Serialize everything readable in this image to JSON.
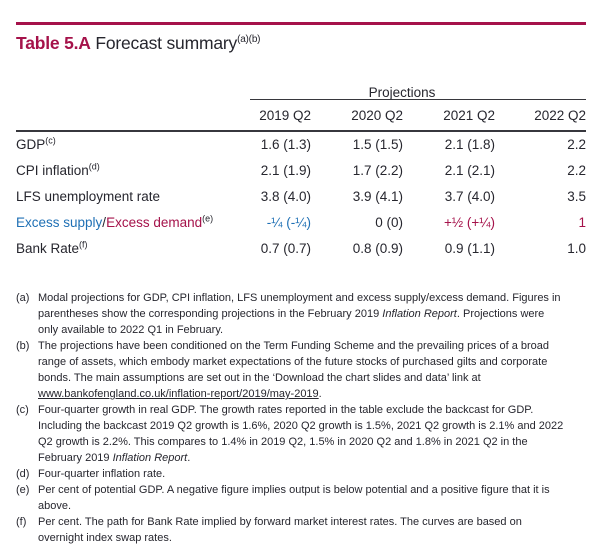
{
  "colors": {
    "crimson": "#A5124A",
    "blue": "#1F70B5",
    "text": "#26262E",
    "line": "#37373D"
  },
  "header": {
    "table_number": "Table 5.A",
    "title": " Forecast summary",
    "title_superscript": "(a)(b)"
  },
  "table": {
    "group_header": "Projections",
    "columns": [
      "2019 Q2",
      "2020 Q2",
      "2021 Q2",
      "2022 Q2"
    ],
    "rows": [
      {
        "label": [
          {
            "t": "GDP"
          },
          {
            "t": "(c)",
            "sup": true
          }
        ],
        "values": [
          {
            "t": "1.6 (1.3)"
          },
          {
            "t": "1.5 (1.5)"
          },
          {
            "t": "2.1 (1.8)"
          },
          {
            "t": "2.2"
          }
        ]
      },
      {
        "label": [
          {
            "t": "CPI inflation"
          },
          {
            "t": "(d)",
            "sup": true
          }
        ],
        "values": [
          {
            "t": "2.1 (1.9)"
          },
          {
            "t": "1.7 (2.2)"
          },
          {
            "t": "2.1 (2.1)"
          },
          {
            "t": "2.2"
          }
        ]
      },
      {
        "label": [
          {
            "t": "LFS unemployment rate"
          }
        ],
        "values": [
          {
            "t": "3.8 (4.0)"
          },
          {
            "t": "3.9 (4.1)"
          },
          {
            "t": "3.7 (4.0)"
          },
          {
            "t": "3.5"
          }
        ]
      },
      {
        "label": [
          {
            "t": "Excess supply",
            "color": "blue"
          },
          {
            "t": "/"
          },
          {
            "t": "Excess demand",
            "color": "crimson"
          },
          {
            "t": "(e)",
            "sup": true
          }
        ],
        "values": [
          {
            "t": "-¼ (-¼)",
            "color": "blue"
          },
          {
            "t": "0 (0)"
          },
          {
            "t": "+½ (+¼)",
            "color": "crimson"
          },
          {
            "t": "1",
            "color": "crimson"
          }
        ]
      },
      {
        "label": [
          {
            "t": "Bank Rate"
          },
          {
            "t": "(f)",
            "sup": true
          }
        ],
        "values": [
          {
            "t": "0.7 (0.7)"
          },
          {
            "t": "0.8 (0.9)"
          },
          {
            "t": "0.9 (1.1)"
          },
          {
            "t": "1.0"
          }
        ]
      }
    ]
  },
  "footnotes": [
    {
      "label": "(a)",
      "segments": [
        {
          "t": "Modal projections for GDP, CPI inflation, LFS unemployment and excess supply/excess demand. Figures in parentheses show the corresponding projections in the February 2019 "
        },
        {
          "t": "Inflation Report",
          "style": "italic"
        },
        {
          "t": ". Projections were only available to 2022 Q1 in February."
        }
      ]
    },
    {
      "label": "(b)",
      "segments": [
        {
          "t": "The projections have been conditioned on the Term Funding Scheme and the prevailing prices of a broad range of assets, which embody market expectations of the future stocks of purchased gilts and corporate bonds. The main assumptions are set out in the ‘Download the chart slides and data’ link at "
        },
        {
          "t": "www.bankofengland.co.uk/inflation-report/2019/may-2019",
          "style": "link"
        },
        {
          "t": "."
        }
      ]
    },
    {
      "label": "(c)",
      "segments": [
        {
          "t": "Four-quarter growth in real GDP. The growth rates reported in the table exclude the backcast for GDP. Including the backcast 2019 Q2 growth is 1.6%, 2020 Q2 growth is 1.5%, 2021 Q2 growth is 2.1% and 2022 Q2 growth is 2.2%. This compares to 1.4% in 2019 Q2, 1.5% in 2020 Q2 and 1.8% in 2021 Q2 in the February 2019 "
        },
        {
          "t": "Inflation Report",
          "style": "italic"
        },
        {
          "t": "."
        }
      ]
    },
    {
      "label": "(d)",
      "segments": [
        {
          "t": "Four-quarter inflation rate."
        }
      ]
    },
    {
      "label": "(e)",
      "segments": [
        {
          "t": "Per cent of potential GDP. A negative figure implies output is below potential and a positive figure that it is above."
        }
      ]
    },
    {
      "label": "(f)",
      "segments": [
        {
          "t": "Per cent. The path for Bank Rate implied by forward market interest rates. The curves are based on overnight index swap rates."
        }
      ]
    }
  ]
}
